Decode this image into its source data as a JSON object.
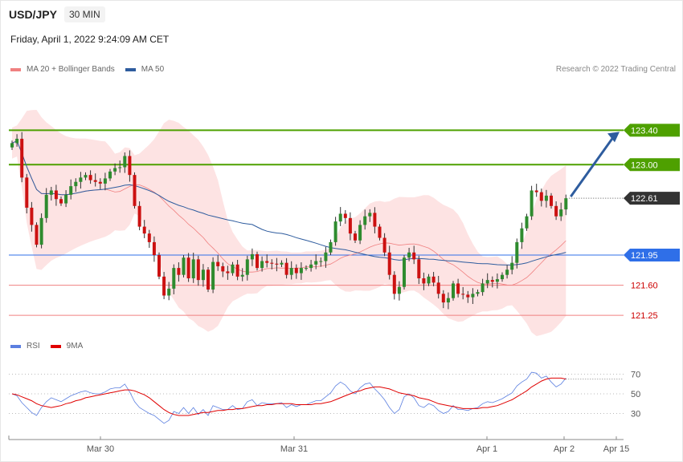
{
  "header": {
    "pair": "USD/JPY",
    "timeframe": "30 MIN",
    "datetime": "Friday, April 1, 2022 9:24:09 AM CET"
  },
  "legend": {
    "ma20_label": "MA 20 + Bollinger Bands",
    "ma50_label": "MA 50",
    "ma20_color": "#f08080",
    "ma50_color": "#2e5c9e"
  },
  "credit": "Research © 2022 Trading Central",
  "rsi_legend": {
    "rsi_label": "RSI",
    "ma_label": "9MA",
    "rsi_color": "#5b7fe0",
    "ma_color": "#e00000"
  },
  "colors": {
    "up": "#2e8b2e",
    "down": "#cc1111",
    "band_fill": "#fde3e3",
    "resistance": "#4ea000",
    "support": "#f08080",
    "pivot": "#2f6fe8",
    "current": "#333333",
    "arrow": "#2e5c9e"
  },
  "chart_data": [
    {
      "type": "candlestick",
      "ylim": [
        121.0,
        123.85
      ],
      "x_labels": [
        "Mar 30",
        "Mar 31",
        "Apr 1",
        "Apr 2",
        "Apr 15"
      ],
      "levels": [
        {
          "value": 123.4,
          "label": "123.40",
          "kind": "resistance"
        },
        {
          "value": 123.0,
          "label": "123.00",
          "kind": "resistance"
        },
        {
          "value": 122.61,
          "label": "122.61",
          "kind": "current"
        },
        {
          "value": 121.95,
          "label": "121.95",
          "kind": "pivot"
        },
        {
          "value": 121.6,
          "label": "121.60",
          "kind": "support"
        },
        {
          "value": 121.25,
          "label": "121.25",
          "kind": "support"
        }
      ],
      "closes": [
        123.25,
        123.3,
        122.85,
        122.5,
        122.3,
        122.07,
        122.38,
        122.65,
        122.7,
        122.6,
        122.55,
        122.65,
        122.75,
        122.8,
        122.85,
        122.88,
        122.82,
        122.8,
        122.78,
        122.84,
        122.92,
        122.96,
        122.97,
        123.1,
        122.88,
        122.52,
        122.28,
        122.2,
        122.1,
        121.95,
        121.7,
        121.48,
        121.56,
        121.8,
        121.72,
        121.92,
        121.68,
        121.9,
        121.66,
        121.78,
        121.55,
        121.87,
        121.82,
        121.76,
        121.74,
        121.84,
        121.7,
        121.72,
        121.9,
        121.96,
        121.8,
        121.88,
        121.86,
        121.85,
        121.84,
        121.86,
        121.72,
        121.8,
        121.74,
        121.8,
        121.8,
        121.84,
        121.88,
        121.88,
        121.98,
        122.1,
        122.34,
        122.43,
        122.38,
        122.2,
        122.12,
        122.3,
        122.4,
        122.44,
        122.28,
        122.15,
        121.98,
        121.72,
        121.5,
        121.58,
        121.92,
        121.98,
        121.9,
        121.68,
        121.62,
        121.7,
        121.63,
        121.5,
        121.4,
        121.45,
        121.62,
        121.5,
        121.49,
        121.46,
        121.5,
        121.52,
        121.62,
        121.66,
        121.64,
        121.67,
        121.72,
        121.78,
        121.86,
        122.1,
        122.26,
        122.4,
        122.7,
        122.68,
        122.58,
        122.64,
        122.52,
        122.4,
        122.48,
        122.61
      ],
      "rsi": {
        "ylim": [
          10,
          90
        ],
        "ticks": [
          70,
          50,
          30
        ],
        "rsi_values": [
          50,
          48,
          41,
          36,
          31,
          28,
          36,
          42,
          46,
          44,
          42,
          45,
          48,
          50,
          52,
          53,
          51,
          50,
          50,
          52,
          55,
          56,
          56,
          60,
          52,
          42,
          36,
          33,
          30,
          28,
          24,
          20,
          23,
          32,
          30,
          36,
          30,
          36,
          29,
          34,
          28,
          38,
          36,
          34,
          34,
          38,
          34,
          35,
          42,
          44,
          38,
          41,
          40,
          40,
          40,
          41,
          36,
          39,
          37,
          39,
          39,
          41,
          43,
          43,
          47,
          51,
          58,
          62,
          59,
          53,
          50,
          56,
          60,
          61,
          55,
          50,
          44,
          36,
          30,
          34,
          47,
          50,
          46,
          38,
          36,
          40,
          38,
          33,
          30,
          32,
          38,
          34,
          34,
          33,
          35,
          36,
          40,
          42,
          41,
          43,
          45,
          48,
          51,
          58,
          62,
          65,
          72,
          71,
          66,
          68,
          62,
          57,
          60,
          66
        ],
        "ma9_values": [
          50,
          49,
          47,
          45,
          43,
          40,
          38,
          37,
          36,
          37,
          38,
          40,
          41,
          43,
          44,
          46,
          47,
          48,
          49,
          50,
          51,
          52,
          53,
          54,
          54,
          53,
          51,
          49,
          46,
          42,
          38,
          34,
          31,
          29,
          28,
          28,
          28,
          29,
          30,
          31,
          31,
          32,
          33,
          33,
          34,
          34,
          35,
          35,
          36,
          37,
          38,
          38,
          39,
          39,
          40,
          40,
          40,
          40,
          39,
          39,
          39,
          39,
          40,
          40,
          41,
          42,
          44,
          46,
          48,
          50,
          52,
          53,
          55,
          56,
          57,
          57,
          56,
          55,
          53,
          51,
          50,
          49,
          48,
          46,
          45,
          44,
          42,
          40,
          39,
          38,
          37,
          36,
          35,
          35,
          35,
          35,
          36,
          36,
          37,
          38,
          40,
          42,
          44,
          47,
          50,
          53,
          57,
          60,
          63,
          65,
          66,
          66,
          66,
          65
        ]
      }
    }
  ]
}
